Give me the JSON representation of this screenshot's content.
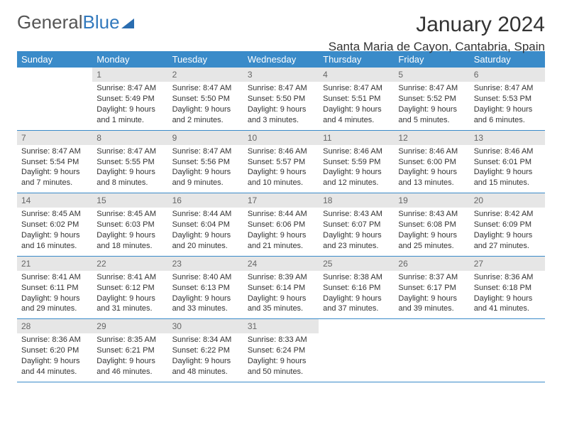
{
  "brand": {
    "part1": "General",
    "part2": "Blue"
  },
  "header": {
    "month": "January 2024",
    "location": "Santa Maria de Cayon, Cantabria, Spain"
  },
  "dayNames": [
    "Sunday",
    "Monday",
    "Tuesday",
    "Wednesday",
    "Thursday",
    "Friday",
    "Saturday"
  ],
  "weeks": [
    [
      null,
      {
        "n": "1",
        "sr": "8:47 AM",
        "ss": "5:49 PM",
        "dl": "9 hours and 1 minute."
      },
      {
        "n": "2",
        "sr": "8:47 AM",
        "ss": "5:50 PM",
        "dl": "9 hours and 2 minutes."
      },
      {
        "n": "3",
        "sr": "8:47 AM",
        "ss": "5:50 PM",
        "dl": "9 hours and 3 minutes."
      },
      {
        "n": "4",
        "sr": "8:47 AM",
        "ss": "5:51 PM",
        "dl": "9 hours and 4 minutes."
      },
      {
        "n": "5",
        "sr": "8:47 AM",
        "ss": "5:52 PM",
        "dl": "9 hours and 5 minutes."
      },
      {
        "n": "6",
        "sr": "8:47 AM",
        "ss": "5:53 PM",
        "dl": "9 hours and 6 minutes."
      }
    ],
    [
      {
        "n": "7",
        "sr": "8:47 AM",
        "ss": "5:54 PM",
        "dl": "9 hours and 7 minutes."
      },
      {
        "n": "8",
        "sr": "8:47 AM",
        "ss": "5:55 PM",
        "dl": "9 hours and 8 minutes."
      },
      {
        "n": "9",
        "sr": "8:47 AM",
        "ss": "5:56 PM",
        "dl": "9 hours and 9 minutes."
      },
      {
        "n": "10",
        "sr": "8:46 AM",
        "ss": "5:57 PM",
        "dl": "9 hours and 10 minutes."
      },
      {
        "n": "11",
        "sr": "8:46 AM",
        "ss": "5:59 PM",
        "dl": "9 hours and 12 minutes."
      },
      {
        "n": "12",
        "sr": "8:46 AM",
        "ss": "6:00 PM",
        "dl": "9 hours and 13 minutes."
      },
      {
        "n": "13",
        "sr": "8:46 AM",
        "ss": "6:01 PM",
        "dl": "9 hours and 15 minutes."
      }
    ],
    [
      {
        "n": "14",
        "sr": "8:45 AM",
        "ss": "6:02 PM",
        "dl": "9 hours and 16 minutes."
      },
      {
        "n": "15",
        "sr": "8:45 AM",
        "ss": "6:03 PM",
        "dl": "9 hours and 18 minutes."
      },
      {
        "n": "16",
        "sr": "8:44 AM",
        "ss": "6:04 PM",
        "dl": "9 hours and 20 minutes."
      },
      {
        "n": "17",
        "sr": "8:44 AM",
        "ss": "6:06 PM",
        "dl": "9 hours and 21 minutes."
      },
      {
        "n": "18",
        "sr": "8:43 AM",
        "ss": "6:07 PM",
        "dl": "9 hours and 23 minutes."
      },
      {
        "n": "19",
        "sr": "8:43 AM",
        "ss": "6:08 PM",
        "dl": "9 hours and 25 minutes."
      },
      {
        "n": "20",
        "sr": "8:42 AM",
        "ss": "6:09 PM",
        "dl": "9 hours and 27 minutes."
      }
    ],
    [
      {
        "n": "21",
        "sr": "8:41 AM",
        "ss": "6:11 PM",
        "dl": "9 hours and 29 minutes."
      },
      {
        "n": "22",
        "sr": "8:41 AM",
        "ss": "6:12 PM",
        "dl": "9 hours and 31 minutes."
      },
      {
        "n": "23",
        "sr": "8:40 AM",
        "ss": "6:13 PM",
        "dl": "9 hours and 33 minutes."
      },
      {
        "n": "24",
        "sr": "8:39 AM",
        "ss": "6:14 PM",
        "dl": "9 hours and 35 minutes."
      },
      {
        "n": "25",
        "sr": "8:38 AM",
        "ss": "6:16 PM",
        "dl": "9 hours and 37 minutes."
      },
      {
        "n": "26",
        "sr": "8:37 AM",
        "ss": "6:17 PM",
        "dl": "9 hours and 39 minutes."
      },
      {
        "n": "27",
        "sr": "8:36 AM",
        "ss": "6:18 PM",
        "dl": "9 hours and 41 minutes."
      }
    ],
    [
      {
        "n": "28",
        "sr": "8:36 AM",
        "ss": "6:20 PM",
        "dl": "9 hours and 44 minutes."
      },
      {
        "n": "29",
        "sr": "8:35 AM",
        "ss": "6:21 PM",
        "dl": "9 hours and 46 minutes."
      },
      {
        "n": "30",
        "sr": "8:34 AM",
        "ss": "6:22 PM",
        "dl": "9 hours and 48 minutes."
      },
      {
        "n": "31",
        "sr": "8:33 AM",
        "ss": "6:24 PM",
        "dl": "9 hours and 50 minutes."
      },
      null,
      null,
      null
    ]
  ],
  "labels": {
    "sunrise": "Sunrise: ",
    "sunset": "Sunset: ",
    "daylight": "Daylight: "
  },
  "style": {
    "header_bg": "#3a8bc9",
    "header_fg": "#ffffff",
    "daynum_bg": "#e6e6e6",
    "border_color": "#3a8bc9",
    "text_color": "#333333",
    "page_bg": "#ffffff",
    "title_fontsize": 30,
    "loc_fontsize": 17,
    "th_fontsize": 13,
    "cell_fontsize": 11
  }
}
